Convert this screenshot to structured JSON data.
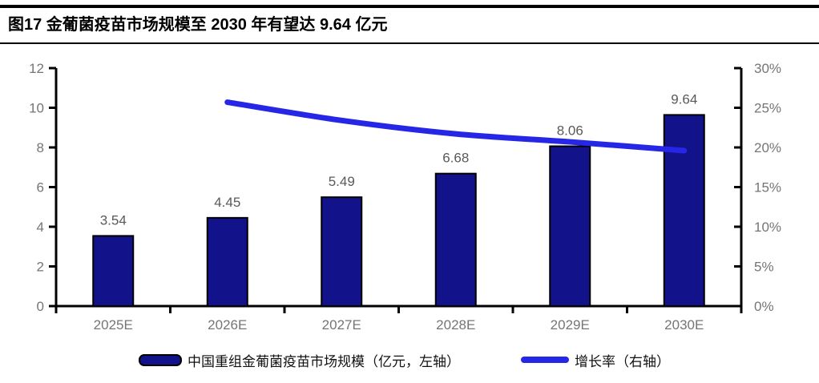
{
  "title": "图17 金葡菌疫苗市场规模至 2030 年有望达 9.64 亿元",
  "chart_data": {
    "type": "bar",
    "subtype": "bar-line-combo",
    "categories": [
      "2025E",
      "2026E",
      "2027E",
      "2028E",
      "2029E",
      "2030E"
    ],
    "series": [
      {
        "name": "中国重组金葡菌疫苗市场规模（亿元，左轴）",
        "type": "bar",
        "axis": "left",
        "values": [
          3.54,
          4.45,
          5.49,
          6.68,
          8.06,
          9.64
        ]
      },
      {
        "name": "增长率（右轴）",
        "type": "line",
        "axis": "right",
        "values_percent": [
          null,
          25.7,
          23.4,
          21.7,
          20.7,
          19.6
        ]
      }
    ],
    "data_labels": [
      "3.54",
      "4.45",
      "5.49",
      "6.68",
      "8.06",
      "9.64"
    ],
    "left_axis": {
      "min": 0,
      "max": 12,
      "step": 2,
      "tick_labels": [
        "0",
        "2",
        "4",
        "6",
        "8",
        "10",
        "12"
      ]
    },
    "right_axis": {
      "min": 0,
      "max": 30,
      "step": 5,
      "tick_labels": [
        "0%",
        "5%",
        "10%",
        "15%",
        "20%",
        "25%",
        "30%"
      ]
    },
    "grid": false,
    "legend_position": "bottom",
    "legend": [
      {
        "label": "中国重组金葡菌疫苗市场规模（亿元，左轴）",
        "marker": "bar-swatch"
      },
      {
        "label": "增长率（右轴）",
        "marker": "line-swatch"
      }
    ]
  },
  "colors": {
    "bar_fill": "#12128A",
    "bar_border": "#000000",
    "line": "#2626E6",
    "axis": "#000000",
    "tick_label": "#757575",
    "data_label": "#595959",
    "title_text": "#000000"
  }
}
